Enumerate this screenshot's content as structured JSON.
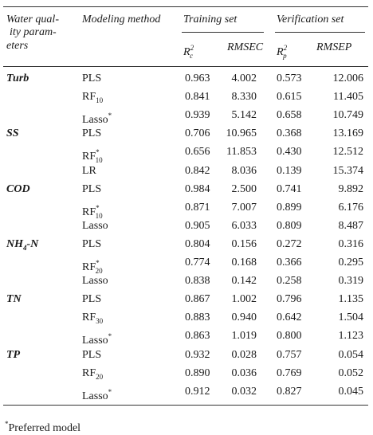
{
  "table": {
    "header": {
      "parameter": [
        "Water qual-",
        "ity param-",
        "eters"
      ],
      "method": "Modeling method",
      "training": "Training set",
      "verification": "Verification set",
      "rc2": [
        {
          "text": "R"
        },
        {
          "text": "2",
          "style": "sup"
        },
        {
          "text": "c",
          "style": "sub"
        }
      ],
      "rmsec": "RMSEC",
      "rp2": [
        {
          "text": "R"
        },
        {
          "text": "2",
          "style": "sup"
        },
        {
          "text": "p",
          "style": "sub"
        }
      ],
      "rmsep": "RMSEP"
    },
    "groups": [
      {
        "parameter": [
          {
            "text": "Turb"
          }
        ],
        "rows": [
          {
            "method": [
              {
                "text": "PLS"
              }
            ],
            "values": [
              "0.963",
              "4.002",
              "0.573",
              "12.006"
            ]
          },
          {
            "method": [
              {
                "text": "RF"
              },
              {
                "text": "10",
                "style": "sub"
              }
            ],
            "values": [
              "0.841",
              "8.330",
              "0.615",
              "11.405"
            ]
          },
          {
            "method": [
              {
                "text": "Lasso"
              },
              {
                "text": "*",
                "style": "sup"
              }
            ],
            "values": [
              "0.939",
              "5.142",
              "0.658",
              "10.749"
            ]
          }
        ]
      },
      {
        "parameter": [
          {
            "text": "SS"
          }
        ],
        "rows": [
          {
            "method": [
              {
                "text": "PLS"
              }
            ],
            "values": [
              "0.706",
              "10.965",
              "0.368",
              "13.169"
            ]
          },
          {
            "method": [
              {
                "text": "RF"
              },
              {
                "text": "*",
                "style": "sup"
              },
              {
                "text": "10",
                "style": "sub"
              }
            ],
            "values": [
              "0.656",
              "11.853",
              "0.430",
              "12.512"
            ]
          },
          {
            "method": [
              {
                "text": "LR"
              }
            ],
            "values": [
              "0.842",
              "8.036",
              "0.139",
              "15.374"
            ]
          }
        ]
      },
      {
        "parameter": [
          {
            "text": "COD"
          }
        ],
        "rows": [
          {
            "method": [
              {
                "text": "PLS"
              }
            ],
            "values": [
              "0.984",
              "2.500",
              "0.741",
              "9.892"
            ]
          },
          {
            "method": [
              {
                "text": "RF"
              },
              {
                "text": "*",
                "style": "sup"
              },
              {
                "text": "10",
                "style": "sub"
              }
            ],
            "values": [
              "0.871",
              "7.007",
              "0.899",
              "6.176"
            ]
          },
          {
            "method": [
              {
                "text": "Lasso"
              }
            ],
            "values": [
              "0.905",
              "6.033",
              "0.809",
              "8.487"
            ]
          }
        ]
      },
      {
        "parameter": [
          {
            "text": "NH"
          },
          {
            "text": "4",
            "style": "sub"
          },
          {
            "text": "-N"
          }
        ],
        "rows": [
          {
            "method": [
              {
                "text": "PLS"
              }
            ],
            "values": [
              "0.804",
              "0.156",
              "0.272",
              "0.316"
            ]
          },
          {
            "method": [
              {
                "text": "RF"
              },
              {
                "text": "*",
                "style": "sup"
              },
              {
                "text": "20",
                "style": "sub"
              }
            ],
            "values": [
              "0.774",
              "0.168",
              "0.366",
              "0.295"
            ]
          },
          {
            "method": [
              {
                "text": "Lasso"
              }
            ],
            "values": [
              "0.838",
              "0.142",
              "0.258",
              "0.319"
            ]
          }
        ]
      },
      {
        "parameter": [
          {
            "text": "TN"
          }
        ],
        "rows": [
          {
            "method": [
              {
                "text": "PLS"
              }
            ],
            "values": [
              "0.867",
              "1.002",
              "0.796",
              "1.135"
            ]
          },
          {
            "method": [
              {
                "text": "RF"
              },
              {
                "text": "30",
                "style": "sub"
              }
            ],
            "values": [
              "0.883",
              "0.940",
              "0.642",
              "1.504"
            ]
          },
          {
            "method": [
              {
                "text": "Lasso"
              },
              {
                "text": "*",
                "style": "sup"
              }
            ],
            "values": [
              "0.863",
              "1.019",
              "0.800",
              "1.123"
            ]
          }
        ]
      },
      {
        "parameter": [
          {
            "text": "TP"
          }
        ],
        "rows": [
          {
            "method": [
              {
                "text": "PLS"
              }
            ],
            "values": [
              "0.932",
              "0.028",
              "0.757",
              "0.054"
            ]
          },
          {
            "method": [
              {
                "text": "RF"
              },
              {
                "text": "20",
                "style": "sub"
              }
            ],
            "values": [
              "0.890",
              "0.036",
              "0.769",
              "0.052"
            ]
          },
          {
            "method": [
              {
                "text": "Lasso"
              },
              {
                "text": "*",
                "style": "sup"
              }
            ],
            "values": [
              "0.912",
              "0.032",
              "0.827",
              "0.045"
            ]
          }
        ]
      }
    ],
    "footnote": [
      {
        "text": "*",
        "style": "sup"
      },
      {
        "text": "Preferred model"
      }
    ]
  }
}
